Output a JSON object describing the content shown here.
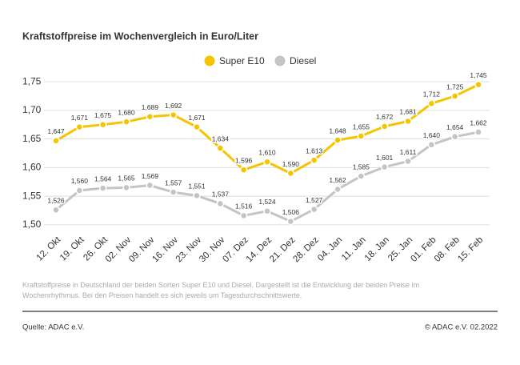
{
  "chart_data": {
    "type": "line",
    "title": "Kraftstoffpreise im Wochenvergleich in Euro/Liter",
    "categories": [
      "12. Okt",
      "19. Okt",
      "26. Okt",
      "02. Nov",
      "09. Nov",
      "16. Nov",
      "23. Nov",
      "30. Nov",
      "07. Dez",
      "14. Dez",
      "21. Dez",
      "28. Dez",
      "04. Jan",
      "11. Jan",
      "18. Jan",
      "25. Jan",
      "01. Feb",
      "08. Feb",
      "15. Feb"
    ],
    "series": [
      {
        "name": "Super E10",
        "color": "#f5c400",
        "values": [
          1.647,
          1.671,
          1.675,
          1.68,
          1.689,
          1.692,
          1.671,
          1.634,
          1.596,
          1.61,
          1.59,
          1.613,
          1.648,
          1.655,
          1.672,
          1.681,
          1.712,
          1.725,
          1.745
        ],
        "value_labels": [
          "1,647",
          "1,671",
          "1,675",
          "1,680",
          "1,689",
          "1,692",
          "1,671",
          "1,634",
          "1,596",
          "1,610",
          "1,590",
          "1,613",
          "1,648",
          "1,655",
          "1,672",
          "1,681",
          "1,712",
          "1,725",
          "1,745"
        ]
      },
      {
        "name": "Diesel",
        "color": "#c4c4c4",
        "values": [
          1.526,
          1.56,
          1.564,
          1.565,
          1.569,
          1.557,
          1.551,
          1.537,
          1.516,
          1.524,
          1.506,
          1.527,
          1.562,
          1.585,
          1.601,
          1.611,
          1.64,
          1.654,
          1.662
        ],
        "value_labels": [
          "1,526",
          "1,560",
          "1,564",
          "1,565",
          "1,569",
          "1,557",
          "1,551",
          "1,537",
          "1,516",
          "1,524",
          "1,506",
          "1,527",
          "1,562",
          "1,585",
          "1,601",
          "1,611",
          "1,640",
          "1,654",
          "1,662"
        ]
      }
    ],
    "ylim": [
      1.49,
      1.76
    ],
    "yticks": [
      {
        "value": 1.5,
        "label": "1,50"
      },
      {
        "value": 1.55,
        "label": "1,55"
      },
      {
        "value": 1.6,
        "label": "1,60"
      },
      {
        "value": 1.65,
        "label": "1,65"
      },
      {
        "value": 1.7,
        "label": "1,70"
      },
      {
        "value": 1.75,
        "label": "1,75"
      }
    ],
    "grid": true,
    "note": "Kraftstoffpreise in Deutschland der beiden Sorten Super E10 und Diesel. Dargestellt ist die Entwicklung der beiden Preise im Wochenrhythmus. Bei den Preisen handelt es sich jeweils um Tagesdurchschnittswerte.",
    "source": "Quelle: ADAC e.V.",
    "copyright": "© ADAC e.V. 02.2022"
  }
}
